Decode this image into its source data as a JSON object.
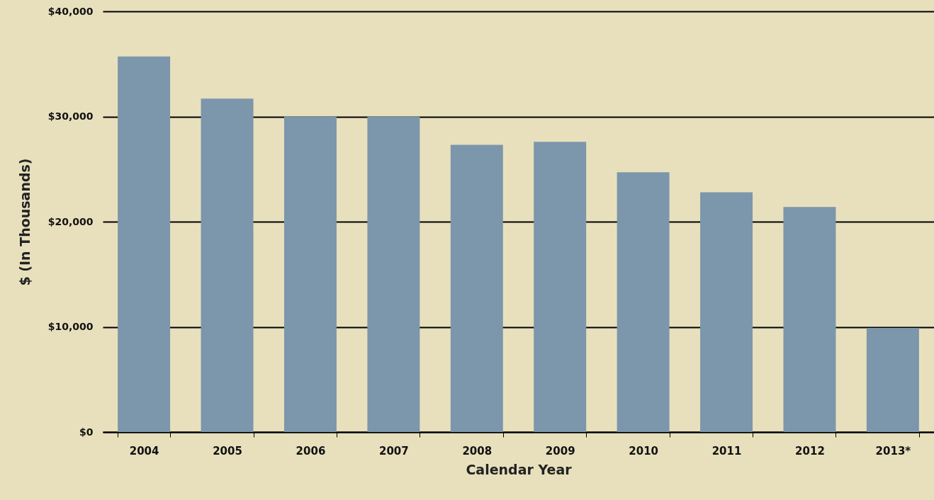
{
  "chart_data": {
    "type": "bar",
    "xlabel": "Calendar Year",
    "ylabel": "$ (In Thousands)",
    "categories": [
      "2004",
      "2005",
      "2006",
      "2007",
      "2008",
      "2009",
      "2010",
      "2011",
      "2012",
      "2013*"
    ],
    "values": [
      35700,
      31700,
      30000,
      30000,
      27300,
      27600,
      24700,
      22800,
      21400,
      9900
    ],
    "color": "#7c96ab",
    "ylim": [
      0,
      40000
    ],
    "yticks": [
      {
        "value": 0,
        "label": "$0"
      },
      {
        "value": 10000,
        "label": "$10,000"
      },
      {
        "value": 20000,
        "label": "$20,000"
      },
      {
        "value": 30000,
        "label": "$30,000"
      },
      {
        "value": 40000,
        "label": "$40,000"
      }
    ],
    "grid": "y"
  }
}
